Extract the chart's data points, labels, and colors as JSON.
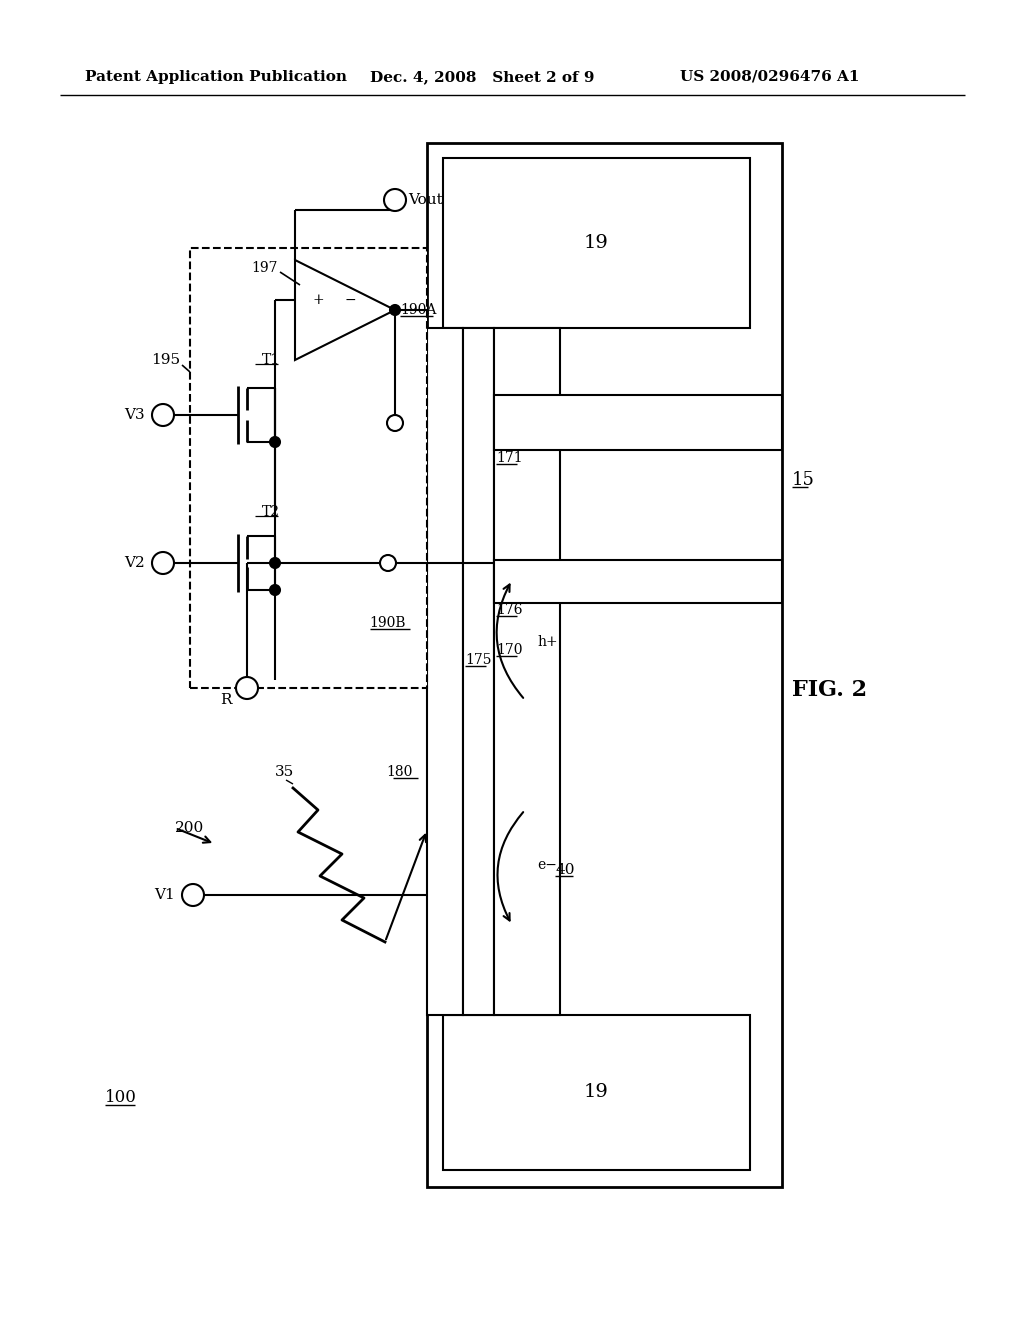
{
  "header_left": "Patent Application Publication",
  "header_mid": "Dec. 4, 2008   Sheet 2 of 9",
  "header_right": "US 2008/0296476 A1",
  "fig_label": "FIG. 2",
  "bg": "#ffffff"
}
